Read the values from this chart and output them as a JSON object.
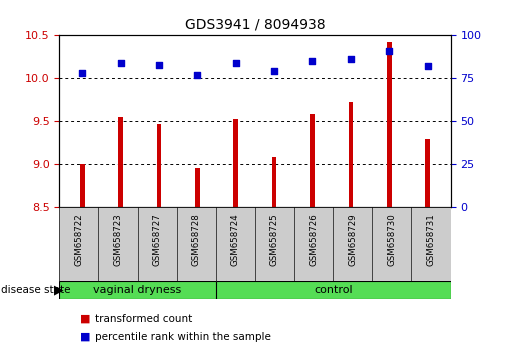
{
  "title": "GDS3941 / 8094938",
  "samples": [
    "GSM658722",
    "GSM658723",
    "GSM658727",
    "GSM658728",
    "GSM658724",
    "GSM658725",
    "GSM658726",
    "GSM658729",
    "GSM658730",
    "GSM658731"
  ],
  "transformed_count": [
    9.0,
    9.55,
    9.47,
    8.95,
    9.53,
    9.08,
    9.58,
    9.72,
    10.42,
    9.29
  ],
  "percentile_rank": [
    78,
    84,
    83,
    77,
    84,
    79,
    85,
    86,
    91,
    82
  ],
  "bar_color": "#cc0000",
  "dot_color": "#0000cc",
  "ylim_left": [
    8.5,
    10.5
  ],
  "ylim_right": [
    0,
    100
  ],
  "yticks_left": [
    8.5,
    9.0,
    9.5,
    10.0,
    10.5
  ],
  "yticks_right": [
    0,
    25,
    50,
    75,
    100
  ],
  "grid_vals": [
    9.0,
    9.5,
    10.0
  ],
  "group1_label": "vaginal dryness",
  "group1_count": 4,
  "group2_label": "control",
  "group2_count": 6,
  "group_bar_color": "#55dd55",
  "disease_state_label": "disease state",
  "legend_bar_label": "transformed count",
  "legend_dot_label": "percentile rank within the sample",
  "tick_label_color_left": "#cc0000",
  "tick_label_color_right": "#0000cc",
  "bar_width": 0.12,
  "sample_area_color": "#cccccc",
  "title_fontsize": 10
}
